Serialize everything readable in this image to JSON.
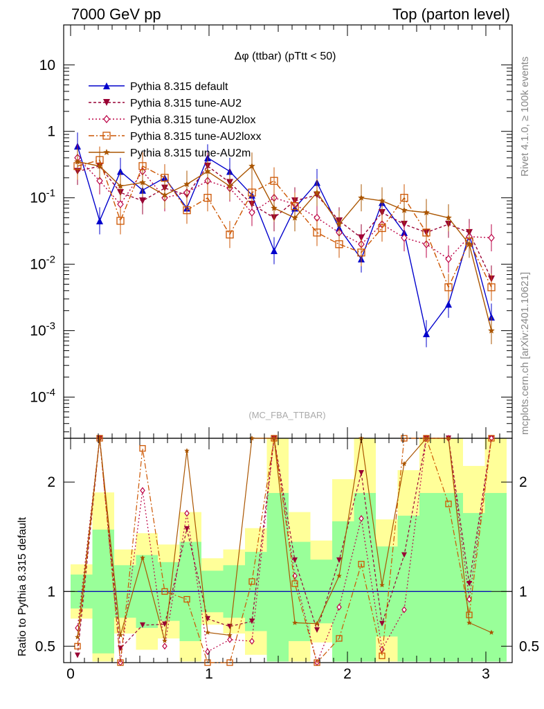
{
  "header": {
    "left": "7000 GeV pp",
    "right": "Top (parton level)"
  },
  "side_labels": {
    "rivet": "Rivet 4.1.0, ≥ 100k events",
    "mcplots": "mcplots.cern.ch [arXiv:2401.10621]"
  },
  "ratio_ylabel": "Ratio to Pythia 8.315 default",
  "watermark": "(MC_FBA_TTBAR)",
  "chart_data": {
    "type": "line",
    "title": "Δφ (ttbar) (pTtt < 50)",
    "xlabel": "",
    "ylabel": "",
    "yscale": "log",
    "xlim": [
      -0.05,
      3.19
    ],
    "ylim": [
      2.4e-05,
      40
    ],
    "ratio_ylim": [
      0.35,
      2.4
    ],
    "x_ticks": [
      "0",
      "1",
      "2",
      "3"
    ],
    "y_ticks": [
      "10",
      "1",
      "10^-1",
      "10^-2",
      "10^-3",
      "10^-4"
    ],
    "ratio_ticks_left": [
      "2",
      "1",
      "0.5"
    ],
    "ratio_ticks_right": [
      "2",
      "1",
      "0.5"
    ],
    "x": [
      0.05,
      0.21,
      0.36,
      0.52,
      0.68,
      0.84,
      0.99,
      1.15,
      1.31,
      1.47,
      1.62,
      1.78,
      1.94,
      2.1,
      2.25,
      2.41,
      2.57,
      2.73,
      2.88,
      3.04
    ],
    "legend": [
      "Pythia 8.315 default",
      "Pythia 8.315 tune-AU2",
      "Pythia 8.315 tune-AU2lox",
      "Pythia 8.315 tune-AU2loxx",
      "Pythia 8.315 tune-AU2m"
    ],
    "series": [
      {
        "name": "Pythia 8.315 default",
        "color": "#0000cc",
        "marker": "triangle-up",
        "dash": "",
        "values": [
          0.6,
          0.045,
          0.25,
          0.13,
          0.2,
          0.07,
          0.4,
          0.25,
          0.11,
          0.016,
          0.07,
          0.17,
          0.035,
          0.012,
          0.085,
          0.03,
          0.0009,
          0.0025,
          0.028,
          0.0016
        ]
      },
      {
        "name": "Pythia 8.315 tune-AU2",
        "color": "#990033",
        "marker": "triangle-down",
        "dash": "4,3",
        "values": [
          0.25,
          0.3,
          0.12,
          0.09,
          0.14,
          0.11,
          0.3,
          0.17,
          0.08,
          0.05,
          0.09,
          0.11,
          0.045,
          0.025,
          0.06,
          0.04,
          0.03,
          0.04,
          0.03,
          0.006
        ]
      },
      {
        "name": "Pythia 8.315 tune-AU2lox",
        "color": "#bb0044",
        "marker": "diamond-open",
        "dash": "2,3",
        "values": [
          0.4,
          0.18,
          0.08,
          0.25,
          0.1,
          0.12,
          0.18,
          0.14,
          0.06,
          0.1,
          0.08,
          0.05,
          0.03,
          0.02,
          0.04,
          0.025,
          0.02,
          0.012,
          0.026,
          0.025
        ]
      },
      {
        "name": "Pythia 8.315 tune-AU2loxx",
        "color": "#cc5500",
        "marker": "square-open",
        "dash": "8,3,2,3",
        "values": [
          0.3,
          0.37,
          0.045,
          0.3,
          0.2,
          0.065,
          0.1,
          0.028,
          0.12,
          0.18,
          0.075,
          0.03,
          0.02,
          0.015,
          0.035,
          0.1,
          0.03,
          0.0045,
          0.022,
          0.0045
        ]
      },
      {
        "name": "Pythia 8.315 tune-AU2m",
        "color": "#aa5500",
        "marker": "star",
        "dash": "",
        "values": [
          0.35,
          0.3,
          0.15,
          0.17,
          0.11,
          0.16,
          0.25,
          0.15,
          0.3,
          0.07,
          0.05,
          0.12,
          0.04,
          0.1,
          0.09,
          0.065,
          0.06,
          0.05,
          0.02,
          0.001
        ]
      }
    ]
  }
}
